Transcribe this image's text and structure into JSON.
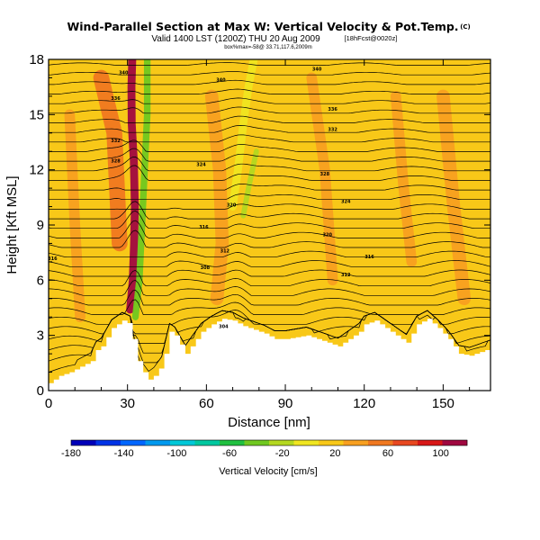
{
  "chart_data": {
    "type": "heatmap",
    "title": "Wind-Parallel Section at Max W: Vertical Velocity & Pot.Temp.",
    "title_mark": "(C)",
    "subtitle": "Valid 1400 LST (1200Z) THU 20 Aug 2009",
    "subtitle_run": "[18hFcst@0020z]",
    "note": "box%max=-58@ 33.71,117.6,2009m",
    "xlabel": "Distance [nm]",
    "ylabel": "Height [Kft MSL]",
    "xlim": [
      0,
      168
    ],
    "ylim": [
      0,
      18
    ],
    "xticks": [
      0,
      30,
      60,
      90,
      120,
      150
    ],
    "yticks": [
      0,
      3,
      6,
      9,
      12,
      15,
      18
    ],
    "grid": false,
    "colorbar": {
      "label": "Vertical Velocity [cm/s]",
      "tick_labels": [
        -180,
        -140,
        -100,
        -60,
        -20,
        20,
        60,
        100
      ],
      "range": [
        -180,
        120
      ],
      "colors": [
        "#0000b8",
        "#0033e6",
        "#0066ff",
        "#0099ee",
        "#00c8d8",
        "#00c8a0",
        "#20c040",
        "#70c820",
        "#b4d820",
        "#f0e620",
        "#f8c818",
        "#f8a020",
        "#f07820",
        "#e84820",
        "#d81818",
        "#a00840"
      ]
    },
    "terrain": [
      [
        0,
        0.4
      ],
      [
        4,
        0.8
      ],
      [
        8,
        1
      ],
      [
        12,
        1.3
      ],
      [
        16,
        1.6
      ],
      [
        18,
        2.2
      ],
      [
        20,
        2.4
      ],
      [
        24,
        3.4
      ],
      [
        28,
        3.8
      ],
      [
        31,
        3.6
      ],
      [
        33,
        2
      ],
      [
        35,
        1.2
      ],
      [
        38,
        0.6
      ],
      [
        40,
        0.8
      ],
      [
        43,
        1.4
      ],
      [
        46,
        3.2
      ],
      [
        48,
        3
      ],
      [
        52,
        2
      ],
      [
        55,
        2.6
      ],
      [
        58,
        3.2
      ],
      [
        62,
        3.6
      ],
      [
        66,
        3.9
      ],
      [
        70,
        3.8
      ],
      [
        74,
        3.5
      ],
      [
        78,
        3.3
      ],
      [
        82,
        3.1
      ],
      [
        86,
        2.8
      ],
      [
        90,
        2.8
      ],
      [
        94,
        2.9
      ],
      [
        98,
        3
      ],
      [
        102,
        2.8
      ],
      [
        106,
        2.6
      ],
      [
        110,
        2.4
      ],
      [
        114,
        2.8
      ],
      [
        118,
        3.2
      ],
      [
        120,
        3.6
      ],
      [
        124,
        3.8
      ],
      [
        128,
        3.4
      ],
      [
        132,
        3
      ],
      [
        136,
        2.6
      ],
      [
        140,
        3.6
      ],
      [
        144,
        3.9
      ],
      [
        148,
        3.4
      ],
      [
        152,
        2.8
      ],
      [
        156,
        2
      ],
      [
        160,
        1.9
      ],
      [
        164,
        2.1
      ],
      [
        168,
        2.3
      ]
    ],
    "background_value": 20,
    "features": [
      {
        "name": "updraft-core",
        "w": 110,
        "path": [
          [
            31,
            4.4
          ],
          [
            32,
            6
          ],
          [
            32.5,
            8
          ],
          [
            32.8,
            10
          ],
          [
            32.4,
            12.5
          ],
          [
            31.6,
            14.5
          ],
          [
            31.5,
            16.5
          ],
          [
            31.8,
            18
          ]
        ],
        "width_nm": 3
      },
      {
        "name": "downdraft-band",
        "w": -40,
        "path": [
          [
            33,
            4
          ],
          [
            34.5,
            6
          ],
          [
            35.5,
            9
          ],
          [
            36.5,
            12
          ],
          [
            37.5,
            15
          ],
          [
            37.5,
            18
          ]
        ],
        "width_nm": 2.5
      },
      {
        "name": "weak-downdraft-east",
        "w": -10,
        "path": [
          [
            70,
            10
          ],
          [
            72,
            12
          ],
          [
            74,
            14.5
          ],
          [
            76,
            16.5
          ],
          [
            78,
            18
          ]
        ],
        "width_nm": 3
      },
      {
        "name": "weak-downdraft-east-2",
        "w": -20,
        "path": [
          [
            74,
            9.5
          ],
          [
            76,
            11
          ],
          [
            79,
            13
          ]
        ],
        "width_nm": 2
      },
      {
        "name": "warm-patch-1",
        "w": 45,
        "path": [
          [
            20,
            17
          ],
          [
            25,
            14
          ],
          [
            27,
            8
          ]
        ],
        "width_nm": 6
      },
      {
        "name": "warm-patch-2",
        "w": 40,
        "path": [
          [
            62,
            16
          ],
          [
            65,
            12
          ],
          [
            66,
            8
          ],
          [
            64,
            5
          ]
        ],
        "width_nm": 5
      },
      {
        "name": "warm-patch-3",
        "w": 38,
        "path": [
          [
            100,
            17
          ],
          [
            105,
            12
          ],
          [
            108,
            6
          ]
        ],
        "width_nm": 4
      },
      {
        "name": "warm-patch-4",
        "w": 38,
        "path": [
          [
            132,
            16
          ],
          [
            135,
            11
          ],
          [
            138,
            7
          ]
        ],
        "width_nm": 4
      },
      {
        "name": "warm-patch-5",
        "w": 35,
        "path": [
          [
            150,
            16
          ],
          [
            154,
            10
          ],
          [
            158,
            5
          ]
        ],
        "width_nm": 5
      },
      {
        "name": "warm-patch-6",
        "w": 35,
        "path": [
          [
            8,
            15
          ],
          [
            10,
            9
          ],
          [
            12,
            4
          ]
        ],
        "width_nm": 4
      }
    ],
    "isentropes": {
      "count": 34,
      "z_bottom": 1.0,
      "z_top": 18.2
    },
    "contour_labels": [
      {
        "text": "340",
        "x": 28.5,
        "y": 17.2
      },
      {
        "text": "336",
        "x": 25.5,
        "y": 15.8
      },
      {
        "text": "332",
        "x": 25.5,
        "y": 13.5
      },
      {
        "text": "328",
        "x": 25.5,
        "y": 12.4
      },
      {
        "text": "316",
        "x": 1.5,
        "y": 7.1
      },
      {
        "text": "340",
        "x": 65.5,
        "y": 16.8
      },
      {
        "text": "324",
        "x": 58,
        "y": 12.2
      },
      {
        "text": "320",
        "x": 69.5,
        "y": 10
      },
      {
        "text": "316",
        "x": 59,
        "y": 8.8
      },
      {
        "text": "312",
        "x": 67,
        "y": 7.5
      },
      {
        "text": "308",
        "x": 59.5,
        "y": 6.6
      },
      {
        "text": "304",
        "x": 66.5,
        "y": 3.4
      },
      {
        "text": "340",
        "x": 102,
        "y": 17.4
      },
      {
        "text": "336",
        "x": 108,
        "y": 15.2
      },
      {
        "text": "332",
        "x": 108,
        "y": 14.1
      },
      {
        "text": "328",
        "x": 105,
        "y": 11.7
      },
      {
        "text": "324",
        "x": 113,
        "y": 10.2
      },
      {
        "text": "320",
        "x": 106,
        "y": 8.4
      },
      {
        "text": "316",
        "x": 122,
        "y": 7.2
      },
      {
        "text": "312",
        "x": 113,
        "y": 6.2
      }
    ]
  }
}
